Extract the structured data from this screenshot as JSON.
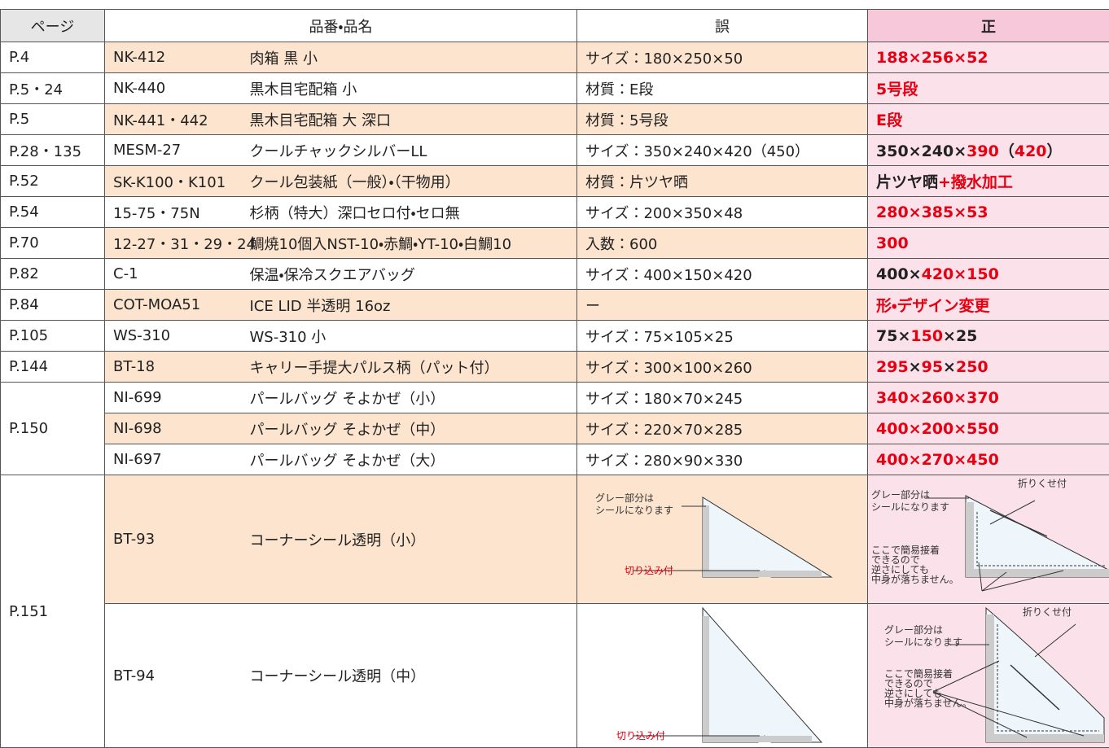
{
  "table": {
    "header": [
      "ページ",
      "品番・品名",
      "誤",
      "正"
    ],
    "groups": [
      {
        "page": "P.4",
        "items": [
          {
            "code": "NK-412",
            "name": "肉箱 黒 小",
            "wrong": "サイズ：180×250×50",
            "correct": [
              {
                "text": "188×256×52",
                "red": true
              }
            ]
          }
        ]
      },
      {
        "page": "P.5・24",
        "items": [
          {
            "code": "NK-440",
            "name": "黒木目宅配箱 小",
            "wrong": "材質：E段",
            "correct": [
              {
                "text": "5号段",
                "red": true
              }
            ]
          }
        ]
      },
      {
        "page": "P.5",
        "items": [
          {
            "code": "NK-441・442",
            "name": "黒木目宅配箱 大 深口",
            "wrong": "材質：5号段",
            "correct": [
              {
                "text": "E段",
                "red": true
              }
            ]
          }
        ]
      },
      {
        "page": "P.28・135",
        "items": [
          {
            "code": "MESM-27",
            "name": "クールチャックシルバーLL",
            "wrong": "サイズ：350×240×420（450）",
            "correct": [
              {
                "text": "350×240×",
                "red": false
              },
              {
                "text": "390",
                "red": true
              },
              {
                "text": "（",
                "red": false
              },
              {
                "text": "420",
                "red": true
              },
              {
                "text": "）",
                "red": false
              }
            ]
          }
        ]
      },
      {
        "page": "P.52",
        "items": [
          {
            "code": "SK-K100・K101",
            "name": "クール包装紙（一般）・（干物用）",
            "wrong": "材質：片ツヤ晒",
            "correct": [
              {
                "text": "片ツヤ晒",
                "red": false
              },
              {
                "text": "+撥水加工",
                "red": true
              }
            ]
          }
        ]
      },
      {
        "page": "P.54",
        "items": [
          {
            "code": "15-75・75N",
            "name": "杉柄（特大）深口セロ付・セロ無",
            "wrong": "サイズ：200×350×48",
            "correct": [
              {
                "text": "280×385×53",
                "red": true
              }
            ]
          }
        ]
      },
      {
        "page": "P.70",
        "items": [
          {
            "code": "12-27・31・29・24",
            "name": "鯛焼10個入NST-10・赤鯛・YT-10・白鯛10",
            "wrong": "入数：600",
            "correct": [
              {
                "text": "300",
                "red": true
              }
            ]
          }
        ]
      },
      {
        "page": "P.82",
        "items": [
          {
            "code": "C-1",
            "name": "保温・保冷スクエアバッグ",
            "wrong": "サイズ：400×150×420",
            "correct": [
              {
                "text": "400×",
                "red": false
              },
              {
                "text": "420×150",
                "red": true
              }
            ]
          }
        ]
      },
      {
        "page": "P.84",
        "items": [
          {
            "code": "COT-MOA51",
            "name": "ICE LID 半透明 16oz",
            "wrong": "ー",
            "correct": [
              {
                "text": "形・デザイン変更",
                "red": true
              }
            ]
          }
        ]
      },
      {
        "page": "P.105",
        "items": [
          {
            "code": "WS-310",
            "name": "WS-310 小",
            "wrong": "サイズ：75×105×25",
            "correct": [
              {
                "text": "75×",
                "red": false
              },
              {
                "text": "150",
                "red": true
              },
              {
                "text": "×25",
                "red": false
              }
            ]
          }
        ]
      },
      {
        "page": "P.144",
        "items": [
          {
            "code": "BT-18",
            "name": "キャリー手提大パルス柄（パット付）",
            "wrong": "サイズ：300×100×260",
            "correct": [
              {
                "text": "295",
                "red": true
              },
              {
                "text": "×",
                "red": false
              },
              {
                "text": "95",
                "red": true
              },
              {
                "text": "×",
                "red": false
              },
              {
                "text": "250",
                "red": true
              }
            ]
          }
        ]
      },
      {
        "page": "P.150",
        "items": [
          {
            "code": "NI-699",
            "name": "パールバッグ そよかぜ（小）",
            "wrong": "サイズ：180×70×245",
            "correct": [
              {
                "text": "340×260×370",
                "red": true
              }
            ]
          },
          {
            "code": "NI-698",
            "name": "パールバッグ そよかぜ（中）",
            "wrong": "サイズ：220×70×285",
            "correct": [
              {
                "text": "400×200×550",
                "red": true
              }
            ]
          },
          {
            "code": "NI-697",
            "name": "パールバッグ そよかぜ（大）",
            "wrong": "サイズ：280×90×330",
            "correct": [
              {
                "text": "400×270×450",
                "red": true
              }
            ]
          }
        ]
      },
      {
        "page": "P.151",
        "items": [
          {
            "code": "BT-93",
            "name": "コーナーシール透明（小）",
            "wrong_figure": {
              "gray_note": [
                "グレー部分は",
                "シールになります"
              ],
              "notch_note": "切り込み付"
            },
            "correct_figure": {
              "gray_note": [
                "グレー部分は",
                "シールになります"
              ],
              "fold_note": "折りくせ付",
              "glue_note": [
                "ここで簡易接着",
                "できるので",
                "逆さにしても",
                "中身が落ちません。"
              ]
            }
          },
          {
            "code": "BT-94",
            "name": "コーナーシール透明（中）",
            "wrong_figure": {
              "notch_note": "切り込み付"
            },
            "correct_figure": {
              "gray_note": [
                "グレー部分は",
                "シールになります"
              ],
              "fold_note": "折りくせ付",
              "glue_note": [
                "ここで簡易接着",
                "できるので",
                "逆さにしても",
                "中身が落ちません。"
              ]
            }
          }
        ]
      }
    ]
  }
}
